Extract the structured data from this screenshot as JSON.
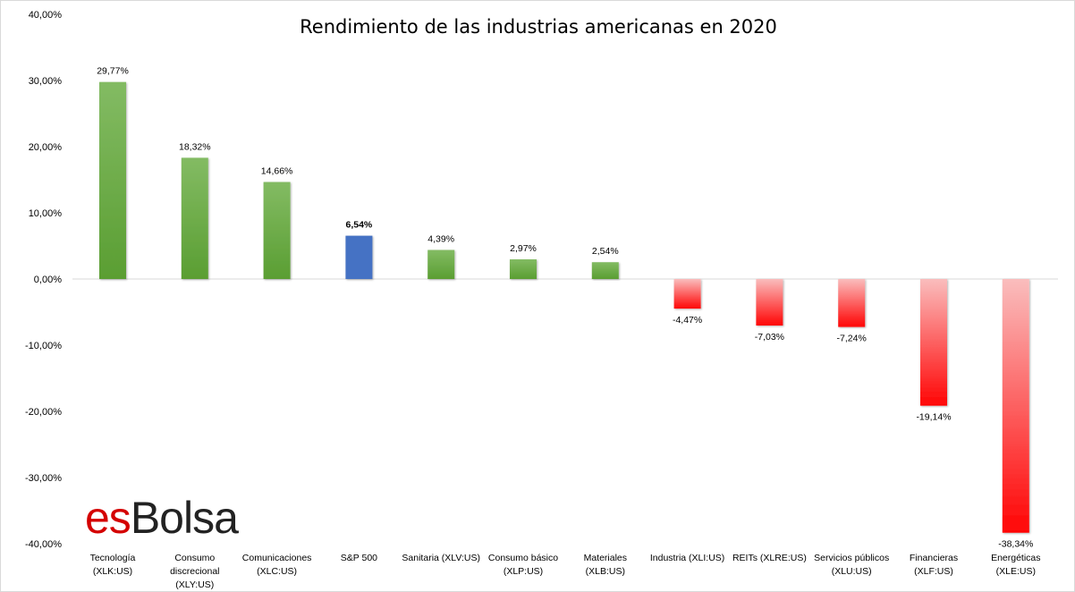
{
  "chart_data": {
    "type": "bar",
    "title": "Rendimiento de las industrias americanas en 2020",
    "xlabel": "",
    "ylabel": "",
    "ylim": [
      -40,
      40
    ],
    "yticks": [
      40,
      30,
      20,
      10,
      0,
      -10,
      -20,
      -30,
      -40
    ],
    "ytick_labels": [
      "40,00%",
      "30,00%",
      "20,00%",
      "10,00%",
      "0,00%",
      "-10,00%",
      "-20,00%",
      "-30,00%",
      "-40,00%"
    ],
    "grid": false,
    "legend": "none",
    "categories": [
      [
        "Tecnología",
        "(XLK:US)"
      ],
      [
        "Consumo",
        "discrecional",
        "(XLY:US)"
      ],
      [
        "Comunicaciones",
        "(XLC:US)"
      ],
      [
        "S&P 500"
      ],
      [
        "Sanitaria (XLV:US)"
      ],
      [
        "Consumo básico",
        "(XLP:US)"
      ],
      [
        "Materiales",
        "(XLB:US)"
      ],
      [
        "Industria (XLI:US)"
      ],
      [
        "REITs (XLRE:US)"
      ],
      [
        "Servicios públicos",
        "(XLU:US)"
      ],
      [
        "Financieras",
        "(XLF:US)"
      ],
      [
        "Energéticas",
        "(XLE:US)"
      ]
    ],
    "values": [
      29.77,
      18.32,
      14.66,
      6.54,
      4.39,
      2.97,
      2.54,
      -4.47,
      -7.03,
      -7.24,
      -19.14,
      -38.34
    ],
    "data_labels": [
      "29,77%",
      "18,32%",
      "14,66%",
      "6,54%",
      "4,39%",
      "2,97%",
      "2,54%",
      "-4,47%",
      "-7,03%",
      "-7,24%",
      "-19,14%",
      "-38,34%"
    ],
    "colors": {
      "positive": "#70ad47",
      "benchmark": "#4472c4",
      "negative": "#ff0000"
    }
  },
  "logo": {
    "part1": "es",
    "part2": "Bolsa"
  }
}
